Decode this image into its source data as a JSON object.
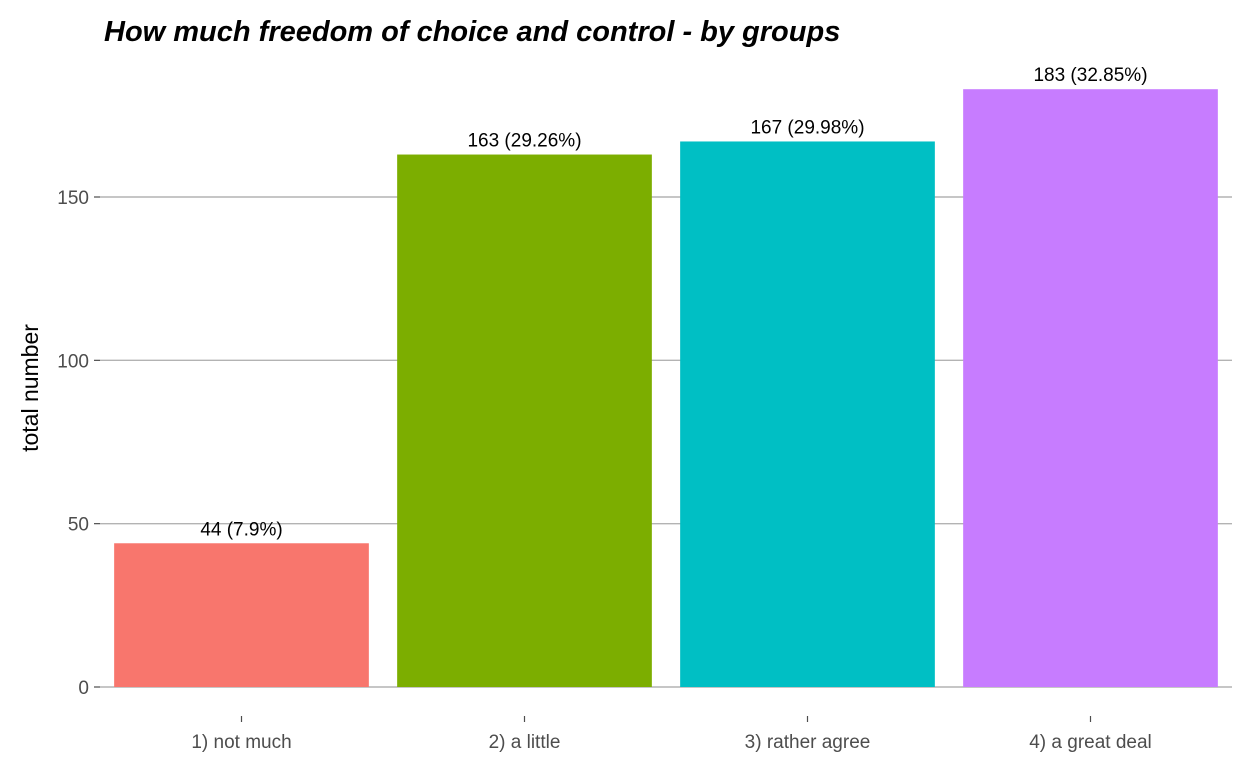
{
  "chart_data": {
    "type": "bar",
    "title": "How much freedom of choice and control - by groups",
    "xlabel": "",
    "ylabel": "total number",
    "categories": [
      "1) not much",
      "2) a little",
      "3) rather agree",
      "4) a great deal"
    ],
    "values": [
      44,
      163,
      167,
      183
    ],
    "data_labels": [
      "44 (7.9%)",
      "163 (29.26%)",
      "167 (29.98%)",
      "183 (32.85%)"
    ],
    "colors": [
      "#F8766D",
      "#7CAE00",
      "#00BFC4",
      "#C77CFF"
    ],
    "y_ticks": [
      0,
      50,
      100,
      150
    ],
    "ylim": [
      0,
      183
    ],
    "grid": true,
    "legend": "none"
  }
}
